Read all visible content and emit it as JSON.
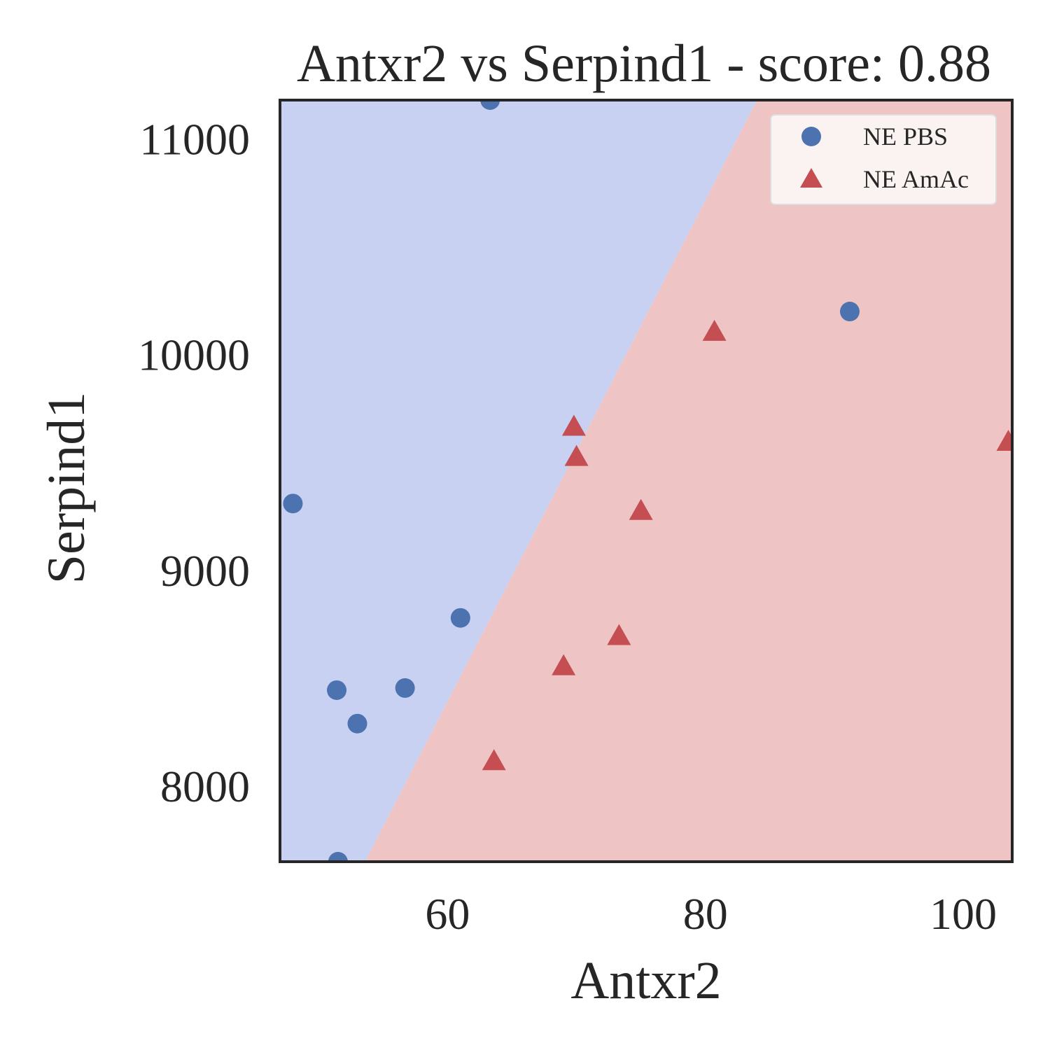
{
  "chart_data": {
    "type": "scatter",
    "title": "Antxr2 vs Serpind1 - score: 0.88",
    "xlabel": "Antxr2",
    "ylabel": "Serpind1",
    "xlim": [
      47,
      103.8
    ],
    "ylim": [
      7650,
      11180
    ],
    "xticks": [
      60,
      80,
      100
    ],
    "yticks": [
      8000,
      9000,
      10000,
      11000
    ],
    "grid": false,
    "legend_position": "top-right",
    "decision_boundary": {
      "points": [
        [
          53.6,
          7650
        ],
        [
          84,
          11180
        ]
      ],
      "left_region_color": "#c8d1f1",
      "right_region_color": "#efc4c4"
    },
    "series": [
      {
        "name": "NE PBS",
        "marker": "circle",
        "color": "#4c72b0",
        "points": [
          [
            63.3,
            11180
          ],
          [
            48.0,
            9310
          ],
          [
            61.0,
            8780
          ],
          [
            51.4,
            8445
          ],
          [
            56.7,
            8455
          ],
          [
            53.0,
            8290
          ],
          [
            51.5,
            7650
          ],
          [
            91.2,
            10200
          ]
        ]
      },
      {
        "name": "NE AmAc",
        "marker": "triangle",
        "color": "#c44e52",
        "points": [
          [
            80.7,
            10100
          ],
          [
            69.8,
            9660
          ],
          [
            70.0,
            9520
          ],
          [
            75.0,
            9270
          ],
          [
            103.5,
            9590
          ],
          [
            73.3,
            8690
          ],
          [
            69.0,
            8550
          ],
          [
            63.6,
            8110
          ]
        ]
      }
    ]
  }
}
